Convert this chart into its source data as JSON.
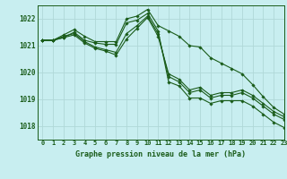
{
  "title": "Graphe pression niveau de la mer (hPa)",
  "background_color": "#c8eef0",
  "grid_color": "#b0d8d8",
  "line_color": "#1a5c1a",
  "xlim": [
    -0.5,
    23
  ],
  "ylim": [
    1017.5,
    1022.5
  ],
  "yticks": [
    1018,
    1019,
    1020,
    1021,
    1022
  ],
  "xticks": [
    0,
    1,
    2,
    3,
    4,
    5,
    6,
    7,
    8,
    9,
    10,
    11,
    12,
    13,
    14,
    15,
    16,
    17,
    18,
    19,
    20,
    21,
    22,
    23
  ],
  "series": [
    [
      1021.2,
      1021.2,
      1021.3,
      1021.5,
      1021.2,
      1021.1,
      1021.05,
      1021.05,
      1021.85,
      1021.95,
      1022.2,
      1021.55,
      1019.65,
      1019.5,
      1019.05,
      1019.05,
      1018.85,
      1018.95,
      1018.95,
      1018.95,
      1018.75,
      1018.45,
      1018.15,
      1017.95
    ],
    [
      1021.2,
      1021.2,
      1021.35,
      1021.45,
      1021.15,
      1020.95,
      1020.85,
      1020.75,
      1021.45,
      1021.75,
      1022.1,
      1021.45,
      1019.85,
      1019.65,
      1019.25,
      1019.35,
      1019.05,
      1019.15,
      1019.15,
      1019.25,
      1019.05,
      1018.75,
      1018.45,
      1018.25
    ],
    [
      1021.2,
      1021.2,
      1021.3,
      1021.4,
      1021.1,
      1020.9,
      1020.8,
      1020.65,
      1021.25,
      1021.65,
      1022.05,
      1021.35,
      1019.95,
      1019.75,
      1019.35,
      1019.45,
      1019.15,
      1019.25,
      1019.25,
      1019.35,
      1019.15,
      1018.85,
      1018.55,
      1018.35
    ],
    [
      1021.2,
      1021.2,
      1021.4,
      1021.6,
      1021.35,
      1021.15,
      1021.15,
      1021.15,
      1022.0,
      1022.1,
      1022.35,
      1021.75,
      1021.55,
      1021.35,
      1021.0,
      1020.95,
      1020.55,
      1020.35,
      1020.15,
      1019.95,
      1019.55,
      1019.1,
      1018.7,
      1018.45
    ]
  ]
}
